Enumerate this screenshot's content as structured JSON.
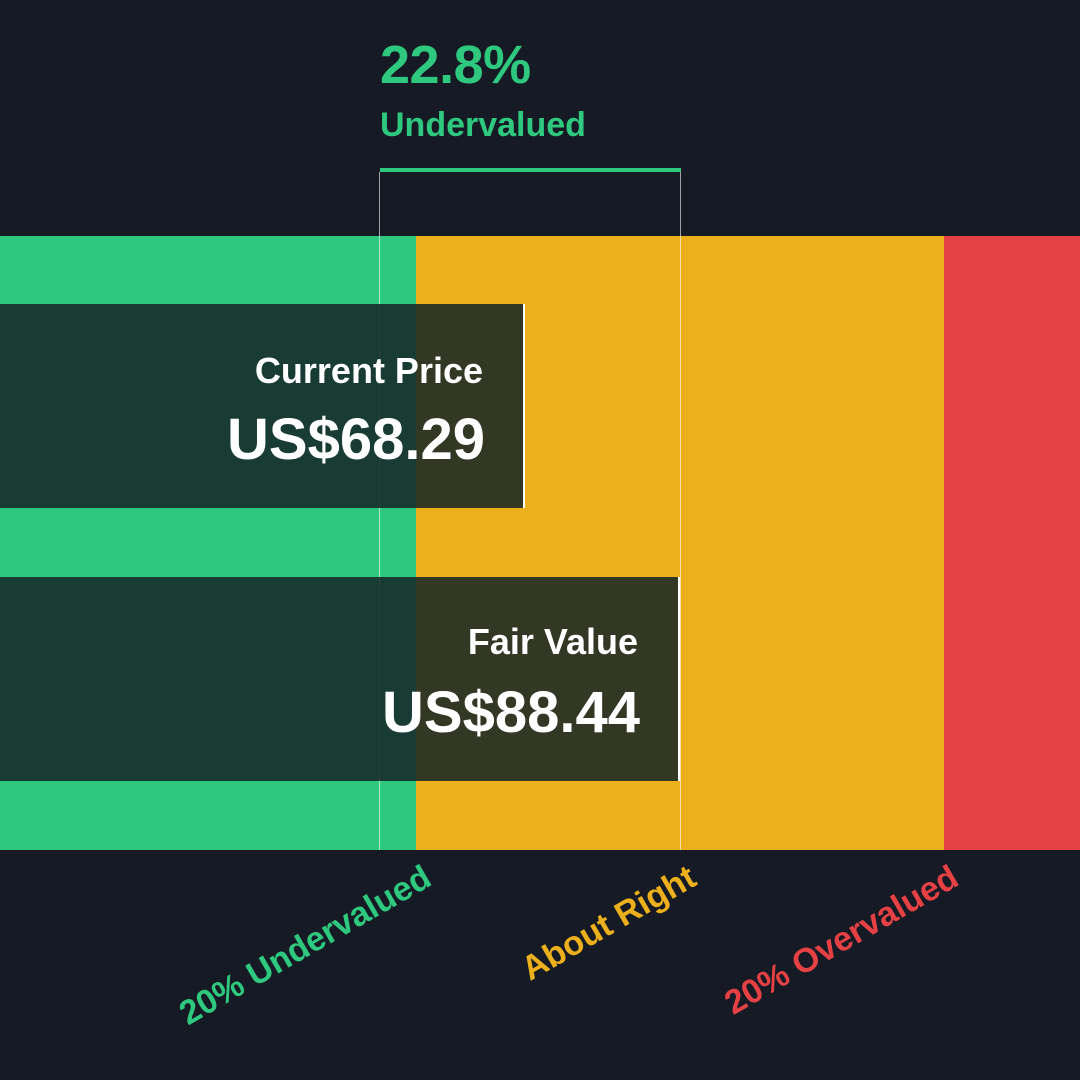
{
  "chart_data": {
    "type": "bar",
    "title": "",
    "current_price": {
      "label": "Current Price",
      "value": 68.29,
      "display": "US$68.29"
    },
    "fair_value": {
      "label": "Fair Value",
      "value": 88.44,
      "display": "US$88.44"
    },
    "discount": {
      "percent": 22.8,
      "display": "22.8%",
      "label": "Undervalued"
    },
    "zones": [
      {
        "name": "undervalued-zone",
        "color": "#2ec97e"
      },
      {
        "name": "about-right-zone",
        "color": "#ebb01b"
      },
      {
        "name": "overvalued-zone",
        "color": "#e54144"
      }
    ],
    "tick_labels": [
      {
        "text": "20% Undervalued",
        "color": "#2ec97e"
      },
      {
        "text": "About Right",
        "color": "#ebb01b"
      },
      {
        "text": "20% Overvalued",
        "color": "#e54144"
      }
    ]
  },
  "colors": {
    "background": "#151a24",
    "undervalued": "#2ec97e",
    "about_right": "#ebb01b",
    "overvalued": "#e54144"
  }
}
